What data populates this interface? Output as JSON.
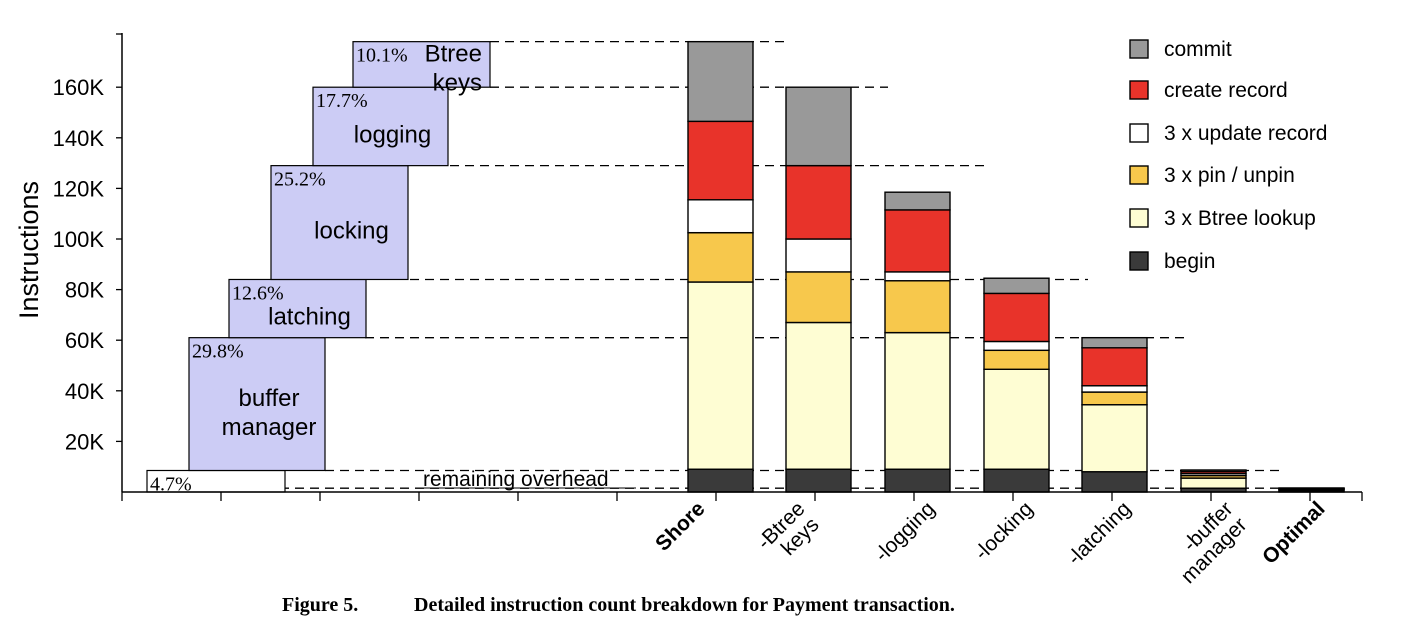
{
  "figure": {
    "caption_label": "Figure 5.",
    "caption_text": "Detailed instruction count breakdown for Payment transaction."
  },
  "chart_data": {
    "type": "bar",
    "stacked": true,
    "ylabel": "Instructions",
    "xlabel": "",
    "ylim": [
      0,
      180000
    ],
    "yticks": [
      20000,
      40000,
      60000,
      80000,
      100000,
      120000,
      140000,
      160000
    ],
    "ytick_labels": [
      "20K",
      "40K",
      "60K",
      "80K",
      "100K",
      "120K",
      "140K",
      "160K"
    ],
    "categories": [
      "Shore",
      "-Btree keys",
      "-logging",
      "-locking",
      "-latching",
      "-buffer manager",
      "Optimal"
    ],
    "category_bold": [
      true,
      false,
      false,
      false,
      false,
      false,
      true
    ],
    "legend_position": "top-right",
    "series": [
      {
        "name": "begin",
        "color": "#3a3a3a",
        "values": [
          9000,
          9000,
          9000,
          9000,
          8000,
          1500,
          400
        ]
      },
      {
        "name": "3 x Btree lookup",
        "color": "#fefdd3",
        "values": [
          74000,
          58000,
          54000,
          39500,
          26500,
          4000,
          500
        ]
      },
      {
        "name": "3 x pin / unpin",
        "color": "#f7c84c",
        "values": [
          19500,
          20000,
          20500,
          7500,
          5000,
          1000,
          200
        ]
      },
      {
        "name": "3 x update record",
        "color": "#ffffff",
        "values": [
          13000,
          13000,
          3500,
          3500,
          2500,
          800,
          200
        ]
      },
      {
        "name": "create record",
        "color": "#e8332a",
        "values": [
          31000,
          29000,
          24500,
          19000,
          15000,
          800,
          200
        ]
      },
      {
        "name": "commit",
        "color": "#999999",
        "values": [
          31500,
          31000,
          7000,
          6000,
          4000,
          600,
          100
        ]
      }
    ],
    "breakdown": {
      "boxes": [
        {
          "pct": "4.7%",
          "name_lines": [],
          "bottom": 0,
          "top": 8500
        },
        {
          "pct": "29.8%",
          "name_lines": [
            "buffer",
            "manager"
          ],
          "bottom": 8500,
          "top": 61000
        },
        {
          "pct": "12.6%",
          "name_lines": [
            "latching"
          ],
          "bottom": 61000,
          "top": 84000
        },
        {
          "pct": "25.2%",
          "name_lines": [
            "locking"
          ],
          "bottom": 84000,
          "top": 129000
        },
        {
          "pct": "17.7%",
          "name_lines": [
            "logging"
          ],
          "bottom": 129000,
          "top": 160000
        },
        {
          "pct": "10.1%",
          "name_lines": [
            "Btree",
            "keys"
          ],
          "bottom": 160000,
          "top": 178000
        }
      ],
      "remaining_label": "remaining overhead",
      "dashed_levels": [
        178000,
        160000,
        129000,
        84000,
        61000,
        8500,
        1500
      ]
    }
  }
}
